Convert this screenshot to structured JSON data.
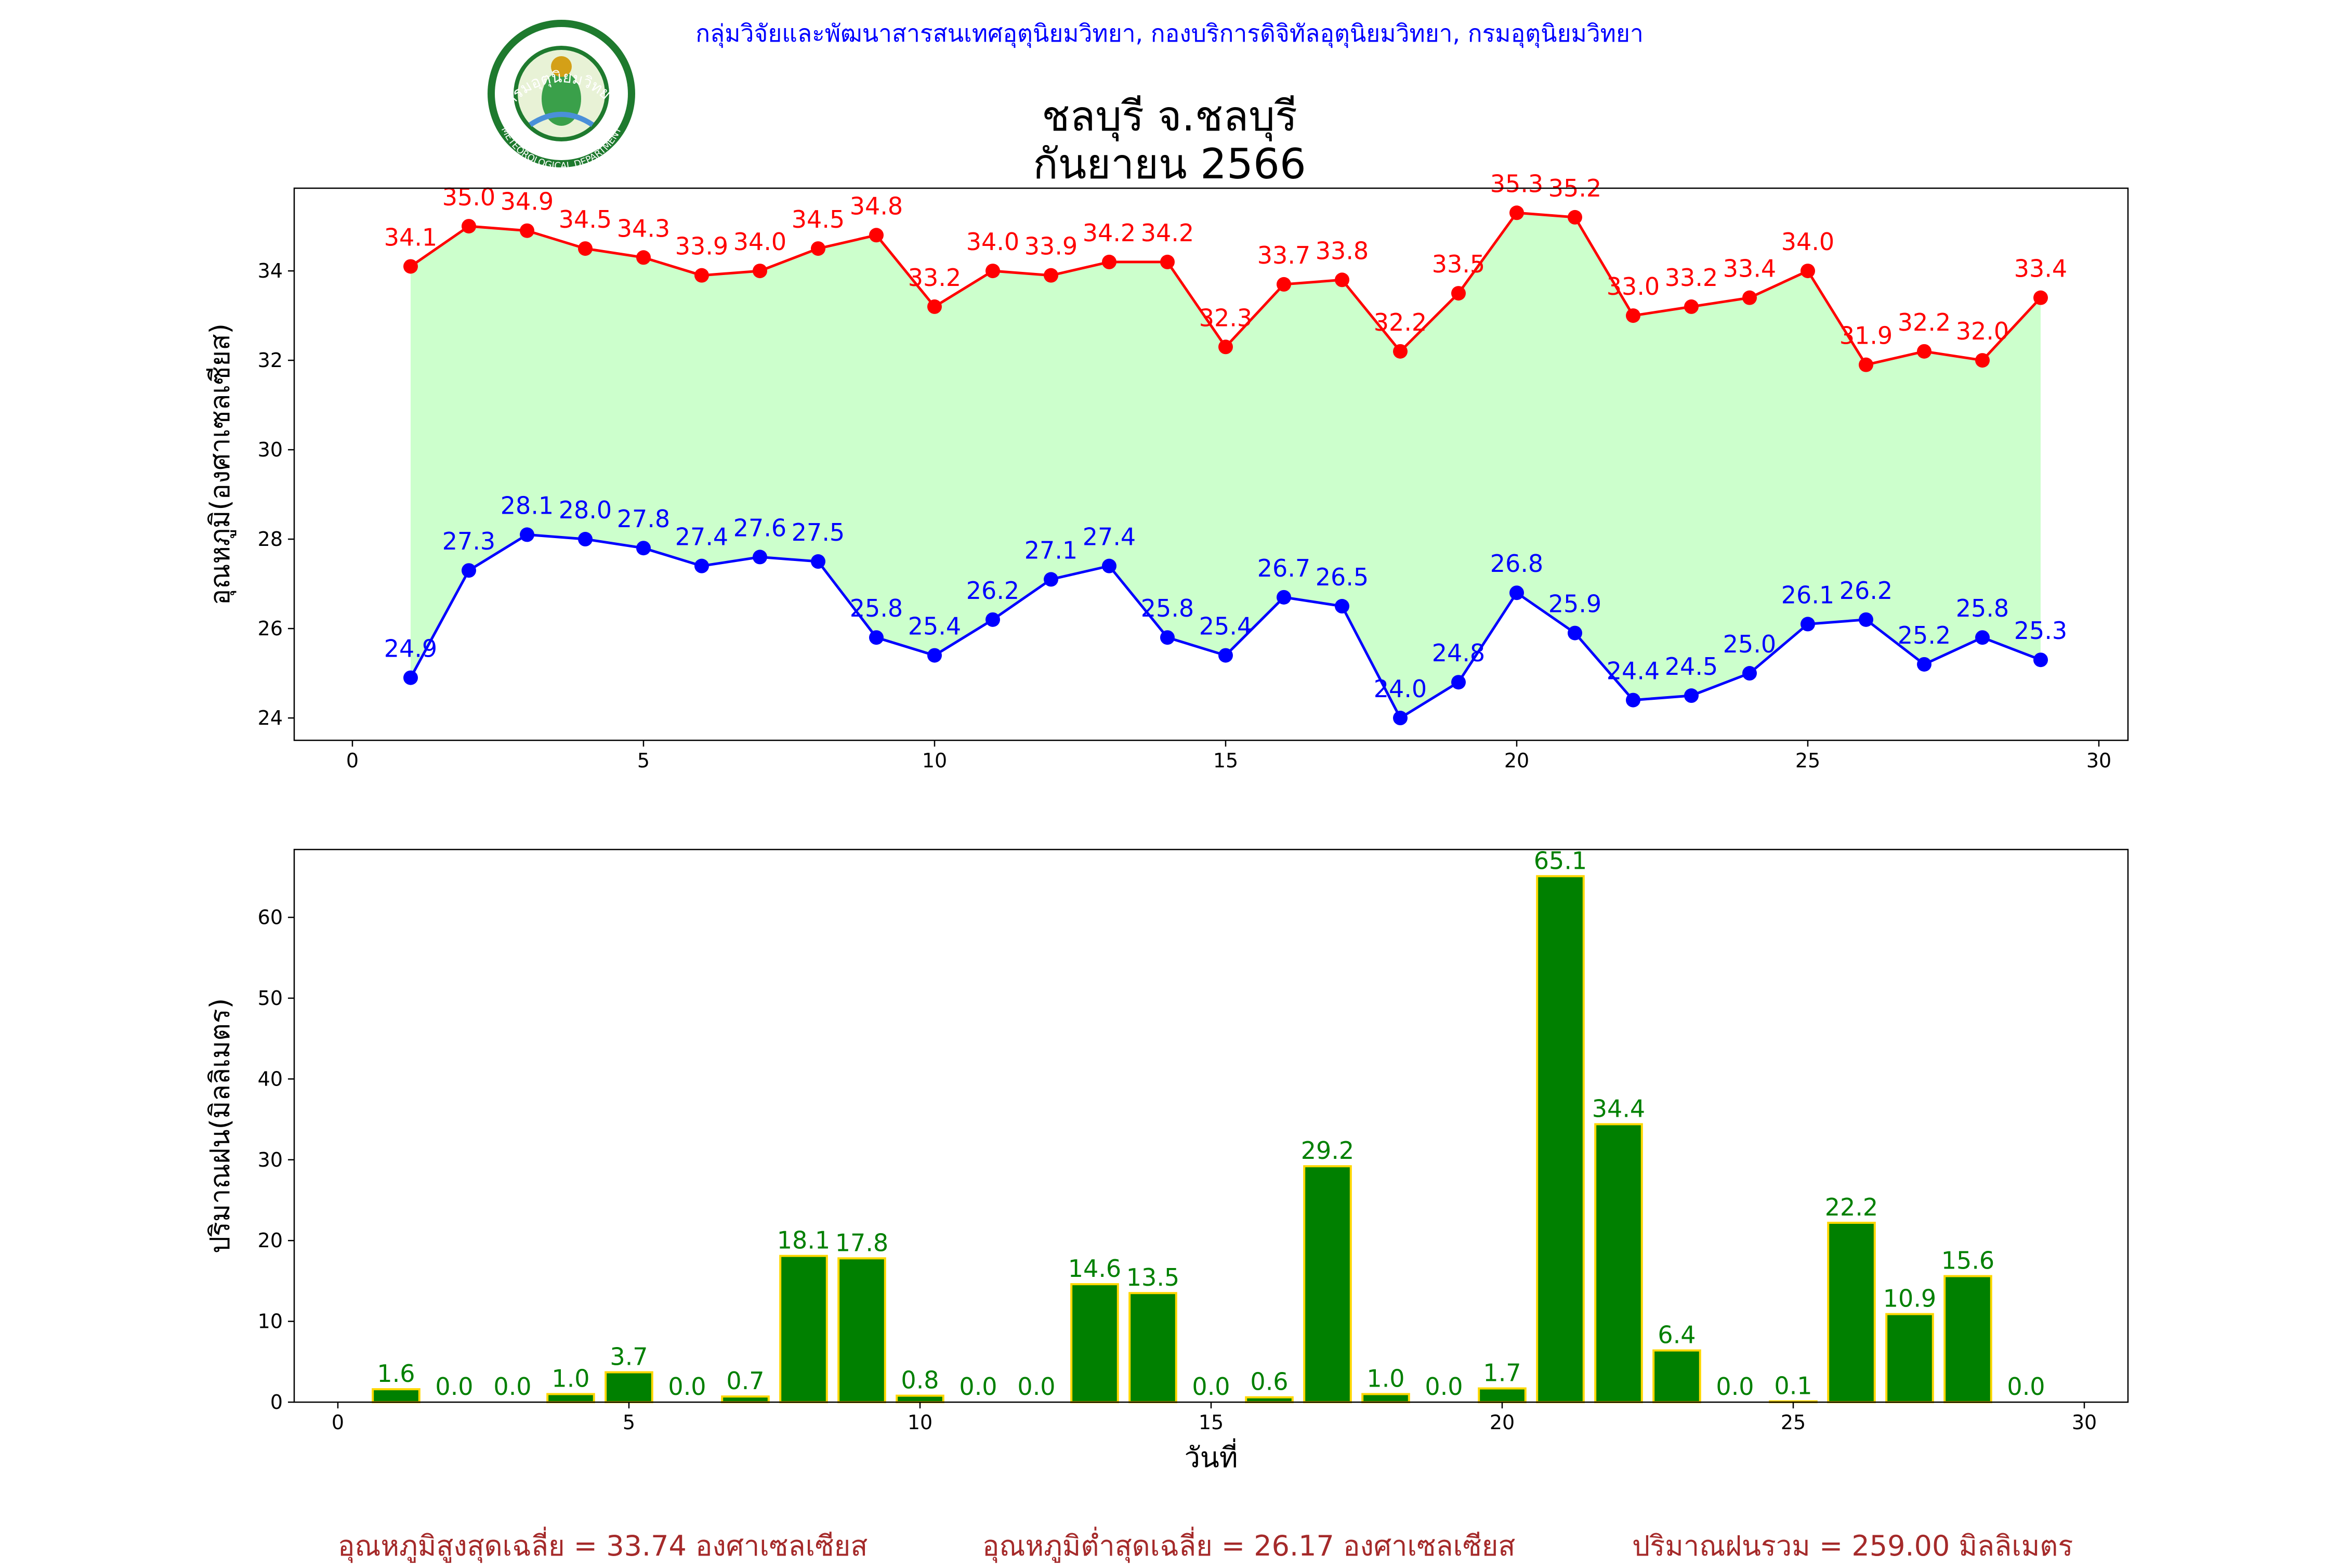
{
  "header": {
    "org_line": "กลุ่มวิจัยและพัฒนาสารสนเทศอุตุนิยมวิทยา, กองบริการดิจิทัลอุตุนิยมวิทยา, กรมอุตุนิยมวิทยา",
    "logo_text_top": "กรมอุตุนิยมวิทยา",
    "logo_text_bottom": "METEOROLOGICAL DEPARTMENT",
    "title_line1": "ชลบุรี จ.ชลบุรี",
    "title_line2": "กันยายน 2566"
  },
  "colors": {
    "max_temp": "#ff0000",
    "min_temp": "#0000ff",
    "temp_fill": "#ccffcc",
    "rain_bar": "#008000",
    "rain_edge": "#ffd700",
    "rain_label": "#008000",
    "header_text": "#0000ff",
    "stats_text": "#a52a2a"
  },
  "chart_data": [
    {
      "type": "line",
      "ylabel": "อุณหภูมิ(องศาเซลเซียส)",
      "xlabel": "",
      "xlim": [
        -1,
        30.5
      ],
      "ylim": [
        23.5,
        35.85
      ],
      "xticks": [
        0,
        5,
        10,
        15,
        20,
        25,
        30
      ],
      "yticks": [
        24,
        26,
        28,
        30,
        32,
        34
      ],
      "grid": false,
      "fill_between_series": true,
      "x": [
        1,
        2,
        3,
        4,
        5,
        6,
        7,
        8,
        9,
        10,
        11,
        12,
        13,
        14,
        15,
        16,
        17,
        18,
        19,
        20,
        21,
        22,
        23,
        24,
        25,
        26,
        27,
        28,
        29
      ],
      "series": [
        {
          "role": "max",
          "values": [
            34.1,
            35.0,
            34.9,
            34.5,
            34.3,
            33.9,
            34.0,
            34.5,
            34.8,
            33.2,
            34.0,
            33.9,
            34.2,
            34.2,
            32.3,
            33.7,
            33.8,
            32.2,
            33.5,
            35.3,
            35.2,
            33.0,
            33.2,
            33.4,
            34.0,
            31.9,
            32.2,
            32.0,
            33.4
          ]
        },
        {
          "role": "min",
          "values": [
            24.9,
            27.3,
            28.1,
            28.0,
            27.8,
            27.4,
            27.6,
            27.5,
            25.8,
            25.4,
            26.2,
            27.1,
            27.4,
            25.8,
            25.4,
            26.7,
            26.5,
            24.0,
            24.8,
            26.8,
            25.9,
            24.4,
            24.5,
            25.0,
            26.1,
            26.2,
            25.2,
            25.8,
            25.3
          ]
        }
      ]
    },
    {
      "type": "bar",
      "ylabel": "ปริมาณฝน(มิลลิเมตร)",
      "xlabel": "วันที่",
      "xlim": [
        -0.75,
        30.75
      ],
      "ylim": [
        0,
        68.4
      ],
      "xticks": [
        0,
        5,
        10,
        15,
        20,
        25,
        30
      ],
      "yticks": [
        0,
        10,
        20,
        30,
        40,
        50,
        60
      ],
      "grid": false,
      "x": [
        1,
        2,
        3,
        4,
        5,
        6,
        7,
        8,
        9,
        10,
        11,
        12,
        13,
        14,
        15,
        16,
        17,
        18,
        19,
        20,
        21,
        22,
        23,
        24,
        25,
        26,
        27,
        28,
        29
      ],
      "values": [
        1.6,
        0.0,
        0.0,
        1.0,
        3.7,
        0.0,
        0.7,
        18.1,
        17.8,
        0.8,
        0.0,
        0.0,
        14.6,
        13.5,
        0.0,
        0.6,
        29.2,
        1.0,
        0.0,
        1.7,
        65.1,
        34.4,
        6.4,
        0.0,
        0.1,
        22.2,
        10.9,
        15.6,
        0.0
      ]
    }
  ],
  "summary": {
    "avg_max": "อุณหภูมิสูงสุดเฉลี่ย = 33.74 องศาเซลเซียส",
    "avg_min": "อุณหภูมิต่ำสุดเฉลี่ย = 26.17 องศาเซลเซียส",
    "total_rain": "ปริมาณฝนรวม = 259.00 มิลลิเมตร"
  }
}
